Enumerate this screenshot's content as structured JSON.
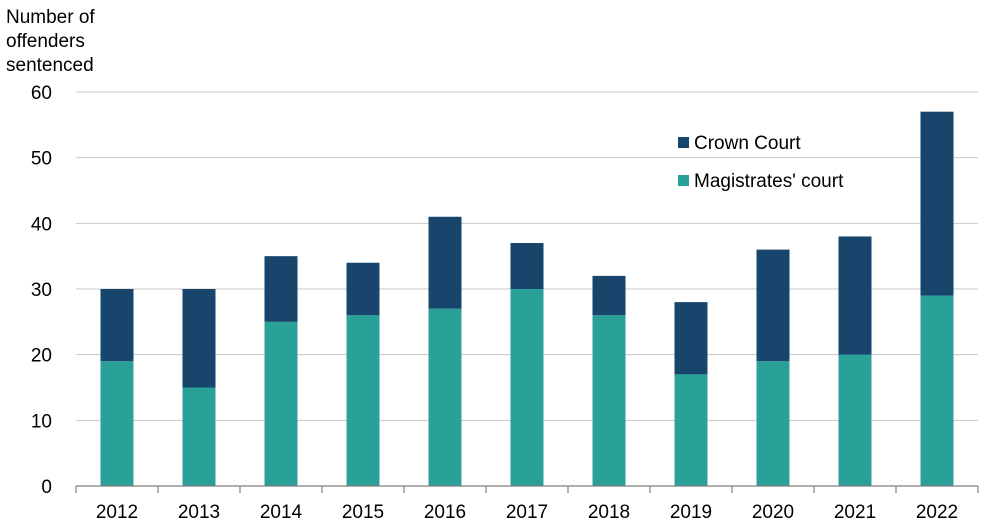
{
  "chart_data": {
    "type": "bar",
    "stacked": true,
    "title": "",
    "ylabel_lines": [
      "Number of",
      "offenders",
      "sentenced"
    ],
    "xlabel": "",
    "categories": [
      "2012",
      "2013",
      "2014",
      "2015",
      "2016",
      "2017",
      "2018",
      "2019",
      "2020",
      "2021",
      "2022"
    ],
    "ylim": [
      0,
      60
    ],
    "yticks": [
      0,
      10,
      20,
      30,
      40,
      50,
      60
    ],
    "grid": true,
    "legend_position": "top-right",
    "series": [
      {
        "name": "Magistrates' court",
        "color": "#2aa198",
        "values": [
          19,
          15,
          25,
          26,
          27,
          30,
          26,
          17,
          19,
          20,
          29
        ]
      },
      {
        "name": "Crown Court",
        "color": "#17456b",
        "values": [
          11,
          15,
          10,
          8,
          14,
          7,
          6,
          11,
          17,
          18,
          28
        ]
      }
    ],
    "legend_order": [
      "Crown Court",
      "Magistrates' court"
    ]
  }
}
